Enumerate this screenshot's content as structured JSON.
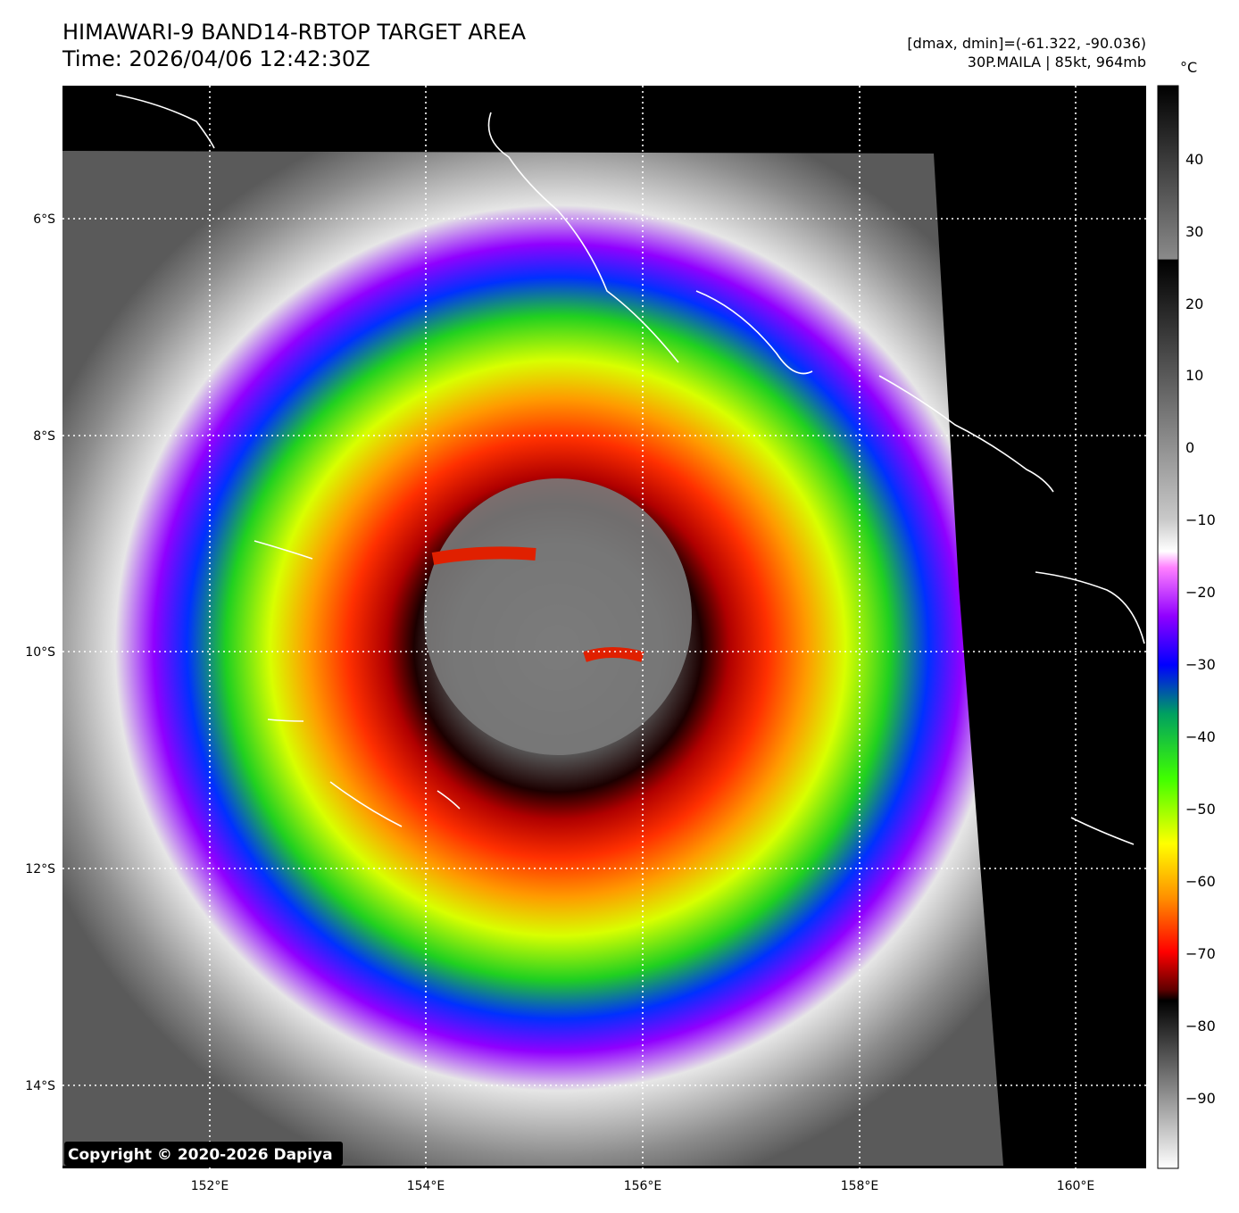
{
  "header": {
    "title": "HIMAWARI-9 BAND14-RBTOP TARGET AREA",
    "time": "Time: 2026/04/06 12:42:30Z",
    "dminmax": "[dmax, dmin]=(-61.322, -90.036)",
    "storm": "30P.MAILA | 85kt, 964mb"
  },
  "map": {
    "copyright": "Copyright © 2020-2026 Dapiya",
    "lon_ticks": [
      "152°E",
      "154°E",
      "156°E",
      "158°E",
      "160°E"
    ],
    "lat_ticks": [
      "6°S",
      "8°S",
      "10°S",
      "12°S",
      "14°S"
    ]
  },
  "colorbar": {
    "unit": "°C",
    "ticks": [
      "40",
      "30",
      "20",
      "10",
      "0",
      "−10",
      "−20",
      "−30",
      "−40",
      "−50",
      "−60",
      "−70",
      "−80",
      "−90"
    ]
  }
}
